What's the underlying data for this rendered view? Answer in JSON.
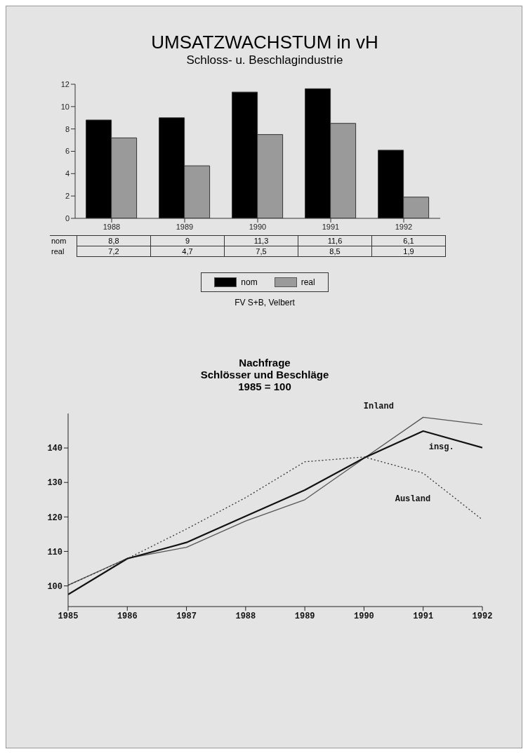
{
  "chart_data": [
    {
      "type": "bar",
      "title": "UMSATZWACHSTUM in vH",
      "subtitle": "Schloss- u. Beschlagindustrie",
      "categories": [
        "1988",
        "1989",
        "1990",
        "1991",
        "1992"
      ],
      "series": [
        {
          "name": "nom",
          "color": "#000000",
          "values": [
            8.8,
            9,
            11.3,
            11.6,
            6.1
          ],
          "value_labels": [
            "8,8",
            "9",
            "11,3",
            "11,6",
            "6,1"
          ]
        },
        {
          "name": "real",
          "color": "#9a9a9a",
          "values": [
            7.2,
            4.7,
            7.5,
            8.5,
            1.9
          ],
          "value_labels": [
            "7,2",
            "4,7",
            "7,5",
            "8,5",
            "1,9"
          ]
        }
      ],
      "ylim": [
        0,
        12
      ],
      "yticks": [
        0,
        2,
        4,
        6,
        8,
        10,
        12
      ],
      "grid": false,
      "legend": "bottom",
      "annotations": [
        "FV S+B, Velbert"
      ]
    },
    {
      "type": "line",
      "title": "Nachfrage",
      "subtitle": "Schlösser und Beschläge\n1985 = 100",
      "x": [
        1985,
        1986,
        1987,
        1988,
        1989,
        1990,
        1991,
        1992
      ],
      "series": [
        {
          "name": "Inland",
          "color": "#555555",
          "line_style": "solid",
          "values": [
            100.2,
            108,
            111.2,
            118.8,
            125,
            137,
            148.9,
            146.8
          ]
        },
        {
          "name": "insg.",
          "color": "#111111",
          "line_style": "solid",
          "values": [
            97.5,
            107.9,
            112.6,
            120.2,
            127.8,
            137.1,
            144.9,
            140.1
          ]
        },
        {
          "name": "Ausland",
          "color": "#333333",
          "line_style": "dotted",
          "values": [
            100.2,
            107.9,
            116.5,
            125.6,
            136,
            137.4,
            132.7,
            119.2
          ]
        }
      ],
      "xlim": [
        1985,
        1992
      ],
      "xticks": [
        1985,
        1986,
        1987,
        1988,
        1989,
        1990,
        1991,
        1992
      ],
      "ylim": [
        94,
        150
      ],
      "yticks": [
        100,
        110,
        120,
        130,
        140
      ],
      "grid": false,
      "marker": "none"
    }
  ]
}
